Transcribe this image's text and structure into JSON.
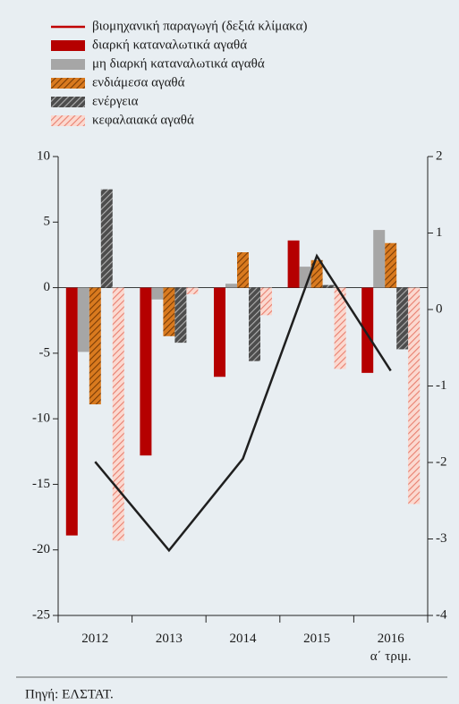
{
  "chart_data": {
    "type": "bar",
    "categories": [
      "2012",
      "2013",
      "2014",
      "2015",
      "2016\nα΄ τριμ."
    ],
    "series": [
      {
        "name": "βιομηχανική παραγωγή (δεξιά κλίμακα)",
        "type": "line",
        "axis": "y2",
        "color": "#1f1f1f",
        "legend_color": "#c00000",
        "values": [
          -1.99,
          -3.15,
          -1.95,
          0.7,
          -0.8
        ]
      },
      {
        "name": "διαρκή καταναλωτικά αγαθά",
        "color": "#b50000",
        "values": [
          -18.9,
          -12.8,
          -6.8,
          3.6,
          -6.5
        ]
      },
      {
        "name": "μη διαρκή καταναλωτικά αγαθά",
        "color": "#a6a6a6",
        "values": [
          -4.9,
          -0.9,
          0.3,
          1.6,
          4.4
        ]
      },
      {
        "name": "ενδιάμεσα αγαθά",
        "color": "#d97a1f",
        "hatch_color": "#7a3c06",
        "values": [
          -8.9,
          -3.7,
          2.7,
          2.1,
          3.4
        ]
      },
      {
        "name": "ενέργεια",
        "color": "#4d4d4d",
        "hatch_color": "#b0b0b0",
        "values": [
          7.5,
          -4.2,
          -5.6,
          0.2,
          -4.7
        ]
      },
      {
        "name": "κεφαλαιακά αγαθά",
        "color": "#fbd9d0",
        "hatch_color": "#e88070",
        "values": [
          -19.3,
          -0.5,
          -2.1,
          -6.2,
          -16.5
        ]
      }
    ],
    "ylim": [
      -25,
      10
    ],
    "yticks": [
      10,
      5,
      0,
      -5,
      -10,
      -15,
      -20,
      -25
    ],
    "y2lim": [
      -4,
      2
    ],
    "y2ticks": [
      2,
      1,
      0,
      -1,
      -2,
      -3,
      -4
    ],
    "source": "Πηγή: ΕΛΣΤΑΤ."
  }
}
